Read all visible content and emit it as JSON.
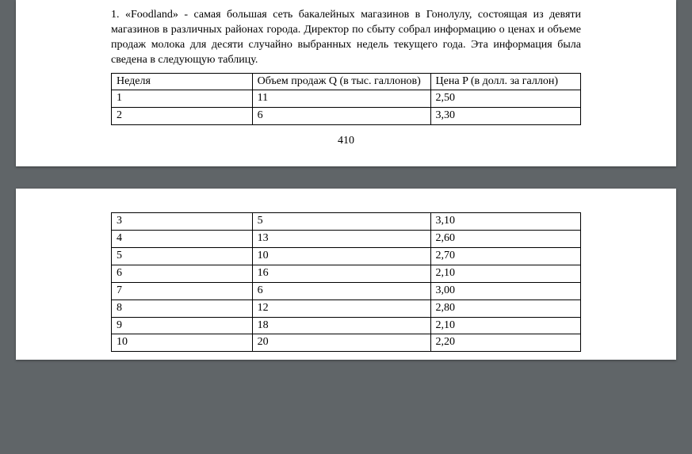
{
  "problem": {
    "full_text": "1. «Foodland» - самая большая сеть  бакалейных магазинов в Гонолулу, состоящая из девяти магазинов в различных районах города. Директор по сбыту собрал информацию о ценах и объеме продаж молока для десяти случайно выбранных недель текущего года. Эта информация была сведена в следующую таблицу."
  },
  "table": {
    "columns": [
      "Неделя",
      "Объем продаж Q (в тыс. галлонов)",
      "Цена P (в долл. за галлон)"
    ],
    "col_widths_pct": [
      30,
      38,
      32
    ],
    "border_color": "#000000",
    "font_size_pt": 11,
    "rows_page1": [
      [
        "1",
        "11",
        "2,50"
      ],
      [
        "2",
        "6",
        "3,30"
      ]
    ],
    "rows_page2": [
      [
        "3",
        "5",
        "3,10"
      ],
      [
        "4",
        "13",
        "2,60"
      ],
      [
        "5",
        "10",
        "2,70"
      ],
      [
        "6",
        "16",
        "2,10"
      ],
      [
        "7",
        "6",
        "3,00"
      ],
      [
        "8",
        "12",
        "2,80"
      ],
      [
        "9",
        "18",
        "2,10"
      ],
      [
        "10",
        "20",
        "2,20"
      ]
    ]
  },
  "page_number": "410",
  "style": {
    "background_color": "#606568",
    "page_color": "#ffffff",
    "text_color": "#000000",
    "font_family": "Times New Roman"
  }
}
